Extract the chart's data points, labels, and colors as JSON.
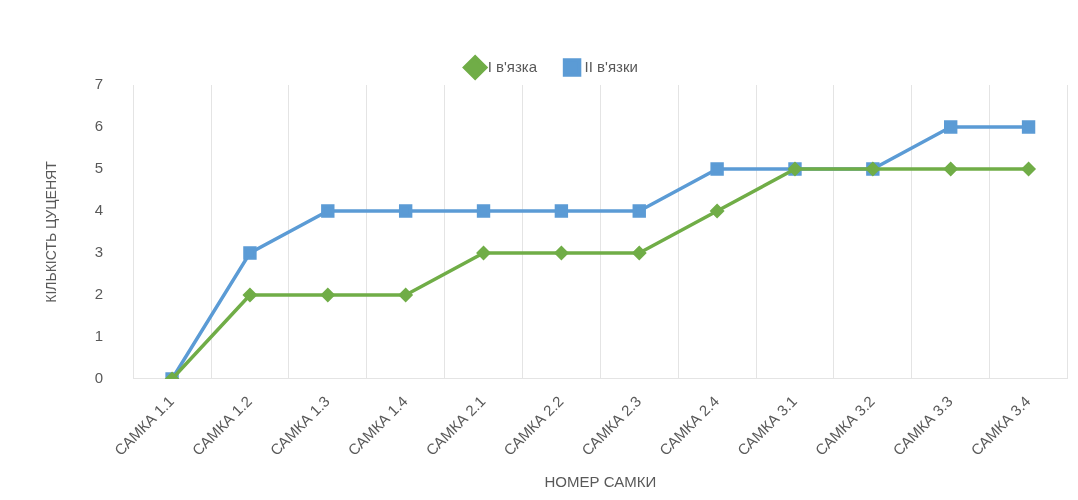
{
  "chart_data": {
    "type": "line",
    "xlabel": "НОМЕР САМКИ",
    "ylabel": "КІЛЬКІСТЬ ЦУЦЕНЯТ",
    "categories": [
      "САМКА 1.1",
      "САМКА 1.2",
      "САМКА 1.3",
      "САМКА 1.4",
      "САМКА 2.1",
      "САМКА 2.2",
      "САМКА 2.3",
      "САМКА 2.4",
      "САМКА 3.1",
      "САМКА 3.2",
      "САМКА 3.3",
      "САМКА 3.4"
    ],
    "series": [
      {
        "name": "I в'язка",
        "color": "#70ad47",
        "marker": "diamond",
        "values": [
          0,
          2,
          2,
          2,
          3,
          3,
          3,
          4,
          5,
          5,
          5,
          5
        ]
      },
      {
        "name": "II в'язки",
        "color": "#5b9bd5",
        "marker": "square",
        "values": [
          0,
          3,
          4,
          4,
          4,
          4,
          4,
          5,
          5,
          5,
          6,
          6
        ]
      }
    ],
    "ylim": [
      0,
      7
    ],
    "yticks": [
      0,
      1,
      2,
      3,
      4,
      5,
      6,
      7
    ],
    "grid": "x",
    "legend": "top",
    "line_style": "solid"
  }
}
